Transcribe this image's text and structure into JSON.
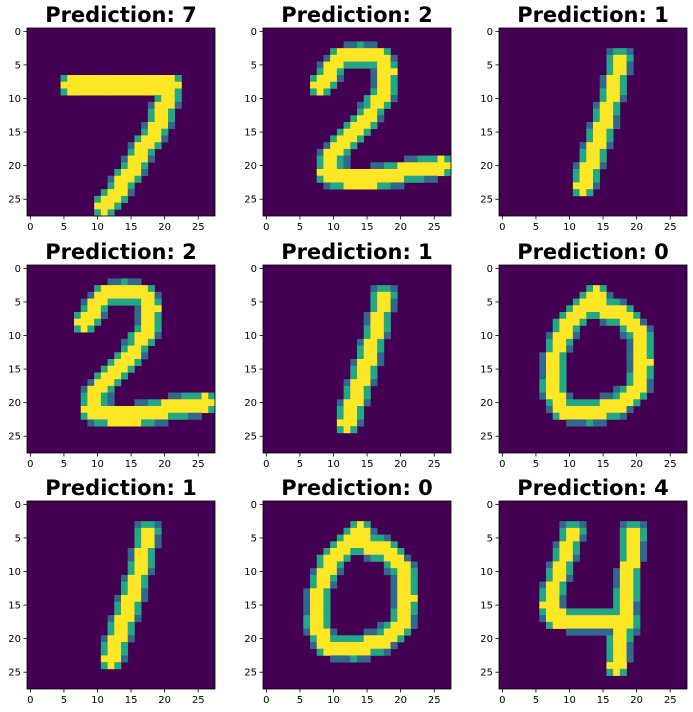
{
  "chart_data": {
    "type": "heatmap",
    "layout": "3x3 grid of images",
    "colormap": "viridis",
    "background_color": "#440154",
    "stroke_color": "#fde725",
    "edge_color": "#22a884",
    "grid": false,
    "xlim": [
      -0.5,
      27.5
    ],
    "ylim": [
      27.5,
      -0.5
    ],
    "xticks": [
      "0",
      "5",
      "10",
      "15",
      "20",
      "25"
    ],
    "yticks": [
      "0",
      "5",
      "10",
      "15",
      "20",
      "25"
    ],
    "panels": [
      {
        "title": "Prediction: 7",
        "digit": "7",
        "strokes": [
          [
            [
              6,
              8
            ],
            [
              21,
              8
            ],
            [
              19,
              14
            ],
            [
              16,
              19
            ],
            [
              13,
              24
            ],
            [
              11,
              26
            ]
          ]
        ]
      },
      {
        "title": "Prediction: 2",
        "digit": "2",
        "strokes": [
          [
            [
              8,
              8
            ],
            [
              11,
              4
            ],
            [
              14,
              3.5
            ],
            [
              17,
              4
            ],
            [
              18,
              6
            ],
            [
              17.5,
              9
            ],
            [
              15,
              13
            ],
            [
              12,
              16
            ],
            [
              9.5,
              19
            ],
            [
              9,
              21
            ],
            [
              12,
              22
            ],
            [
              16,
              22
            ],
            [
              20,
              21
            ],
            [
              26,
              20
            ]
          ]
        ]
      },
      {
        "title": "Prediction: 1",
        "digit": "1",
        "strokes": [
          [
            [
              17.5,
              4
            ],
            [
              16.5,
              9
            ],
            [
              15,
              14
            ],
            [
              13.5,
              18.5
            ],
            [
              12,
              23
            ]
          ]
        ]
      },
      {
        "title": "Prediction: 2",
        "digit": "2",
        "strokes": [
          [
            [
              8,
              8
            ],
            [
              11,
              4
            ],
            [
              14,
              3.5
            ],
            [
              17,
              4
            ],
            [
              18,
              6
            ],
            [
              17.5,
              9
            ],
            [
              15,
              13
            ],
            [
              12,
              16
            ],
            [
              9.5,
              19
            ],
            [
              9,
              21
            ],
            [
              12,
              22
            ],
            [
              16,
              22
            ],
            [
              20,
              21
            ],
            [
              26,
              20
            ]
          ]
        ]
      },
      {
        "title": "Prediction: 1",
        "digit": "1",
        "strokes": [
          [
            [
              17.5,
              4
            ],
            [
              16.5,
              9
            ],
            [
              15,
              14
            ],
            [
              13.5,
              18.5
            ],
            [
              12,
              23
            ]
          ]
        ]
      },
      {
        "title": "Prediction: 0",
        "digit": "0",
        "strokes": [
          [
            [
              14,
              4
            ],
            [
              15,
              6
            ],
            [
              18,
              7
            ],
            [
              20.5,
              10
            ],
            [
              21,
              14
            ],
            [
              20,
              18
            ],
            [
              17,
              20.5
            ],
            [
              13,
              21.5
            ],
            [
              9,
              21
            ],
            [
              7.5,
              18
            ],
            [
              7.8,
              13
            ],
            [
              9.5,
              8.5
            ],
            [
              12,
              6
            ],
            [
              14,
              4
            ]
          ]
        ]
      },
      {
        "title": "Prediction: 1",
        "digit": "1",
        "strokes": [
          [
            [
              17.5,
              4
            ],
            [
              16.5,
              9
            ],
            [
              15,
              14
            ],
            [
              13.5,
              18.5
            ],
            [
              12,
              23
            ]
          ]
        ]
      },
      {
        "title": "Prediction: 0",
        "digit": "0",
        "strokes": [
          [
            [
              14,
              4
            ],
            [
              15,
              6
            ],
            [
              18,
              7
            ],
            [
              20.5,
              10
            ],
            [
              21,
              14
            ],
            [
              20,
              18
            ],
            [
              17,
              20.5
            ],
            [
              13,
              21.5
            ],
            [
              9,
              21
            ],
            [
              7.5,
              18
            ],
            [
              7.8,
              13
            ],
            [
              9.5,
              8.5
            ],
            [
              12,
              6
            ],
            [
              14,
              4
            ]
          ]
        ]
      },
      {
        "title": "Prediction: 4",
        "digit": "4",
        "strokes": [
          [
            [
              10.5,
              4
            ],
            [
              8.5,
              10
            ],
            [
              7,
              15
            ],
            [
              8,
              17
            ],
            [
              19,
              17.5
            ]
          ],
          [
            [
              19.5,
              4
            ],
            [
              19,
              9
            ],
            [
              18.5,
              14
            ],
            [
              17.5,
              20
            ],
            [
              17,
              24
            ]
          ]
        ]
      }
    ]
  }
}
